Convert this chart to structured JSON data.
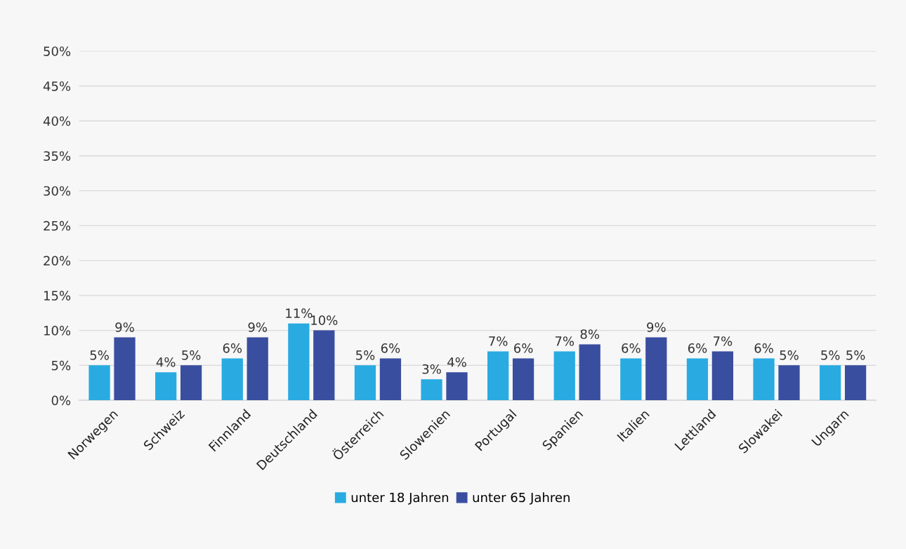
{
  "chart_data": {
    "type": "bar",
    "categories": [
      "Norwegen",
      "Schweiz",
      "Finnland",
      "Deutschland",
      "Österreich",
      "Slowenien",
      "Portugal",
      "Spanien",
      "Italien",
      "Lettland",
      "Slowakei",
      "Ungarn"
    ],
    "series": [
      {
        "name": "unter 18 Jahren",
        "color": "#29abe2",
        "values": [
          5,
          4,
          6,
          11,
          5,
          3,
          7,
          7,
          6,
          6,
          6,
          5
        ],
        "value_labels": [
          "5%",
          "4%",
          "6%",
          "11%",
          "5%",
          "3%",
          "7%",
          "7%",
          "6%",
          "6%",
          "6%",
          "5%"
        ]
      },
      {
        "name": "unter 65 Jahren",
        "color": "#3a4ea0",
        "values": [
          9,
          5,
          9,
          10,
          6,
          4,
          6,
          8,
          9,
          7,
          5,
          5
        ],
        "value_labels": [
          "9%",
          "5%",
          "9%",
          "10%",
          "6%",
          "4%",
          "6%",
          "8%",
          "9%",
          "7%",
          "5%",
          "5%"
        ]
      }
    ],
    "ylim": [
      0,
      50
    ],
    "yticks": [
      {
        "value": 0,
        "label": "0%"
      },
      {
        "value": 5,
        "label": "5%"
      },
      {
        "value": 10,
        "label": "10%"
      },
      {
        "value": 15,
        "label": "15%"
      },
      {
        "value": 20,
        "label": "20%"
      },
      {
        "value": 25,
        "label": "25%"
      },
      {
        "value": 30,
        "label": "30%"
      },
      {
        "value": 35,
        "label": "35%"
      },
      {
        "value": 40,
        "label": "40%"
      },
      {
        "value": 45,
        "label": "45%"
      },
      {
        "value": 50,
        "label": "50%"
      }
    ],
    "grid": "y",
    "legend": "bottom"
  }
}
